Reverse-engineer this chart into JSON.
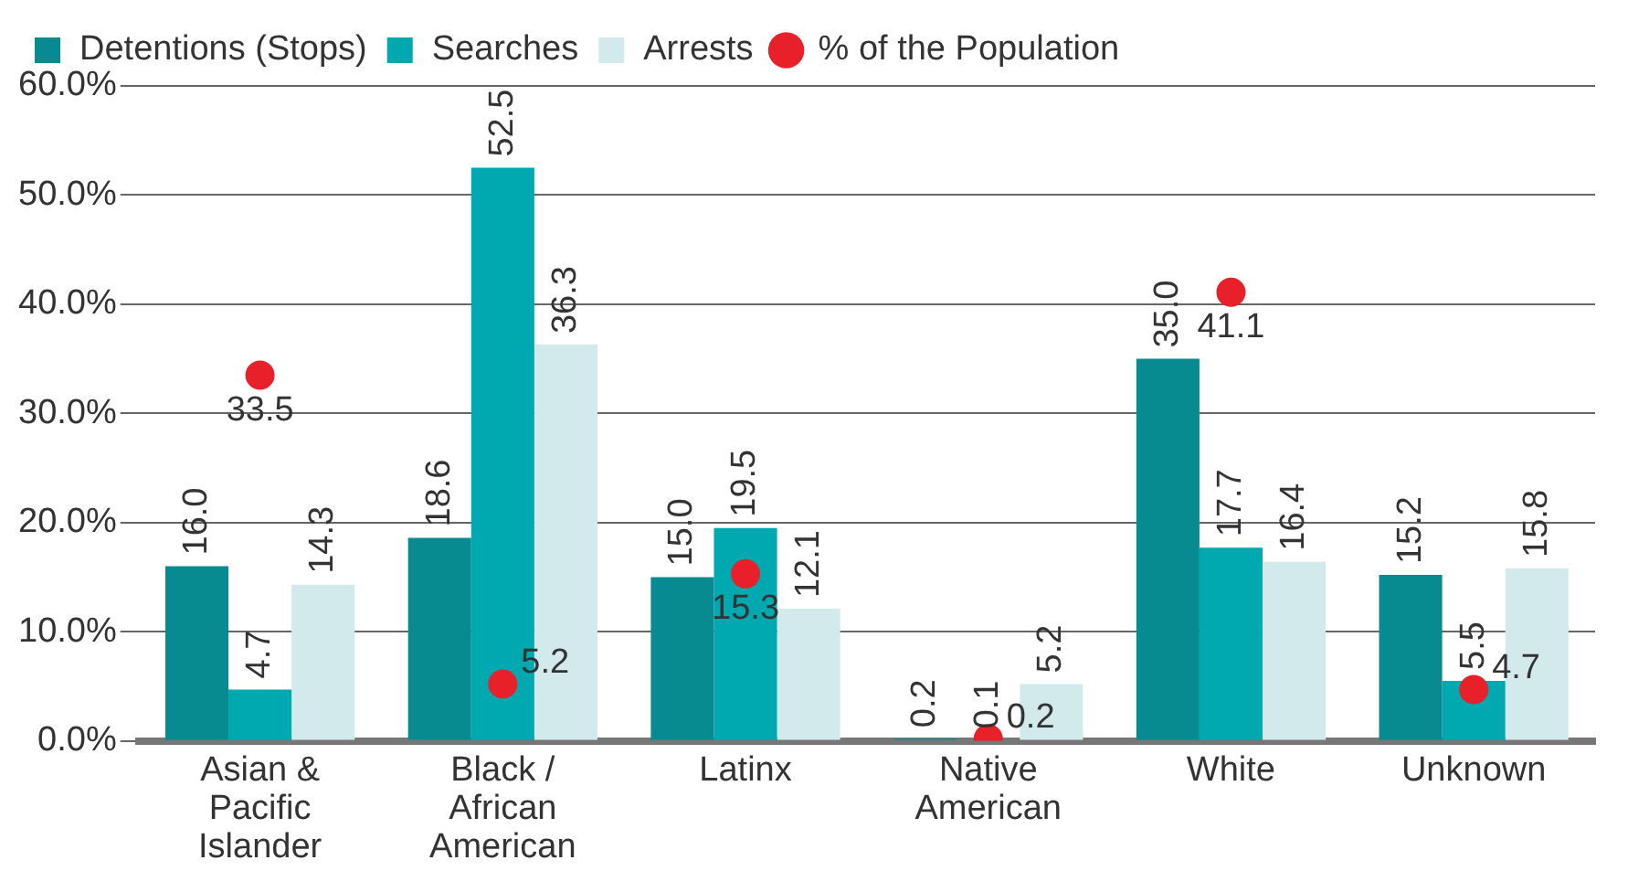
{
  "chart_data": {
    "type": "bar",
    "categories": [
      "Asian & Pacific Islander",
      "Black / African American",
      "Latinx",
      "Native American",
      "White",
      "Unknown"
    ],
    "series": [
      {
        "name": "Detentions (Stops)",
        "color": "#078b90",
        "values": [
          16.0,
          18.6,
          15.0,
          0.2,
          35.0,
          15.2
        ],
        "value_labels": [
          "16.0",
          "18.6",
          "15.0",
          "0.2",
          "35.0",
          "15.2"
        ]
      },
      {
        "name": "Searches",
        "color": "#00a8b0",
        "values": [
          4.7,
          52.5,
          19.5,
          0.1,
          17.7,
          5.5
        ],
        "value_labels": [
          "4.7",
          "52.5",
          "19.5",
          "0.1",
          "17.7",
          "5.5"
        ]
      },
      {
        "name": "Arrests",
        "color": "#d3eaed",
        "values": [
          14.3,
          36.3,
          12.1,
          5.2,
          16.4,
          15.8
        ],
        "value_labels": [
          "14.3",
          "36.3",
          "12.1",
          "5.2",
          "16.4",
          "15.8"
        ]
      },
      {
        "name": "% of the Population",
        "type": "scatter",
        "marker": "circle",
        "color": "#e8202a",
        "values": [
          33.5,
          5.2,
          15.3,
          0.2,
          41.1,
          4.7
        ],
        "value_labels": [
          "33.5",
          "5.2",
          "15.3",
          "0.2",
          "41.1",
          "4.7"
        ]
      }
    ],
    "ylim": [
      0,
      60
    ],
    "yticks": [
      {
        "value": 0,
        "label": "0.0%"
      },
      {
        "value": 10,
        "label": "10.0%"
      },
      {
        "value": 20,
        "label": "20.0%"
      },
      {
        "value": 30,
        "label": "30.0%"
      },
      {
        "value": 40,
        "label": "40.0%"
      },
      {
        "value": 50,
        "label": "50.0%"
      },
      {
        "value": 60,
        "label": "60.0%"
      }
    ],
    "grid": "y",
    "legend": "top left"
  }
}
